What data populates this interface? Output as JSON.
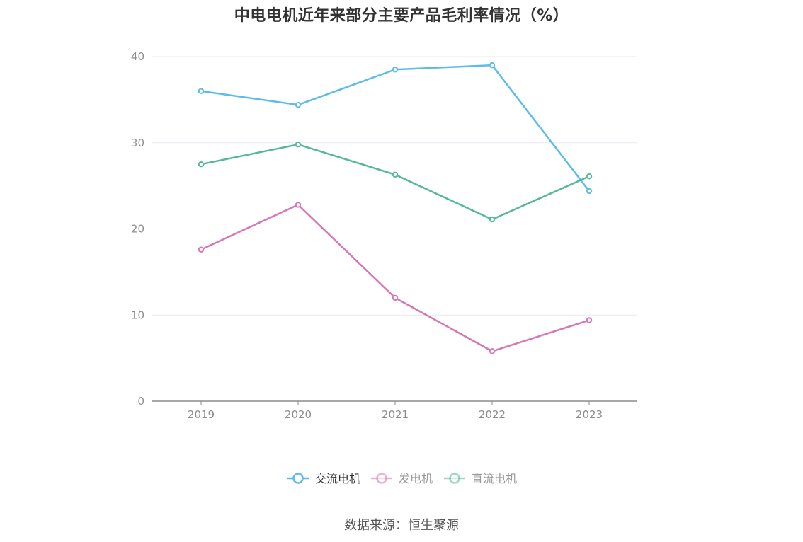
{
  "chart_data": {
    "type": "line",
    "title": "中电电机近年来部分主要产品毛利率情况（%）",
    "xlabel": "",
    "ylabel": "",
    "categories": [
      "2019",
      "2020",
      "2021",
      "2022",
      "2023"
    ],
    "ylim": [
      0,
      40
    ],
    "yticks": [
      0,
      10,
      20,
      30,
      40
    ],
    "grid": true,
    "legend_position": "bottom",
    "series": [
      {
        "name": "交流电机",
        "color": "#5bbcec",
        "values": [
          36.0,
          34.4,
          38.5,
          39.0,
          24.4
        ]
      },
      {
        "name": "发电机",
        "color": "#d975b5",
        "values": [
          17.6,
          22.8,
          12.0,
          5.8,
          9.4
        ]
      },
      {
        "name": "直流电机",
        "color": "#52b99b",
        "values": [
          27.5,
          29.8,
          26.3,
          21.1,
          26.1
        ]
      }
    ],
    "source": "数据来源：恒生聚源"
  },
  "colors": {
    "grid": "#e6e8f0",
    "axis": "#8c8c8c",
    "tick_text": "#8c8c8c",
    "legend_active_text": "#333333",
    "legend_inactive_text": "#999999"
  }
}
